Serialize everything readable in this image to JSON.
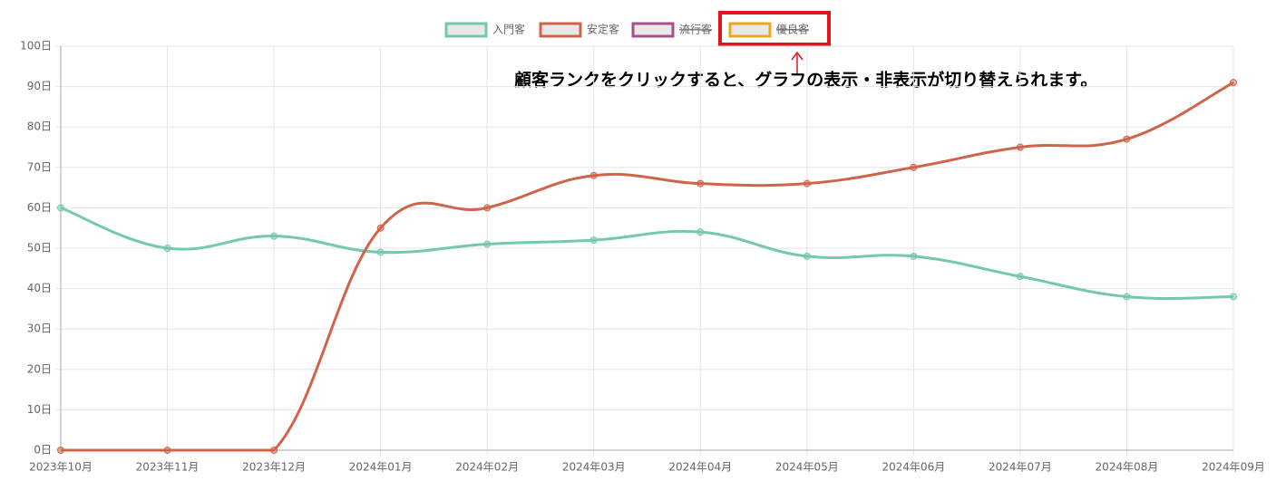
{
  "chart_data": {
    "type": "line",
    "categories": [
      "2023年10月",
      "2023年11月",
      "2023年12月",
      "2024年01月",
      "2024年02月",
      "2024年03月",
      "2024年04月",
      "2024年05月",
      "2024年06月",
      "2024年07月",
      "2024年08月",
      "2024年09月"
    ],
    "series": [
      {
        "name": "入門客",
        "color": "#74c9a9",
        "values": [
          60,
          50,
          53,
          49,
          51,
          52,
          54,
          48,
          48,
          43,
          38,
          38
        ]
      },
      {
        "name": "安定客",
        "color": "#d0644b",
        "values": [
          0,
          0,
          0,
          55,
          60,
          68,
          66,
          66,
          70,
          75,
          77,
          91
        ]
      },
      {
        "name": "流行客",
        "color": "#a8508a",
        "hidden": true
      },
      {
        "name": "優良客",
        "color": "#e8a91f",
        "hidden": true
      }
    ],
    "ylim": [
      0,
      100
    ],
    "yticks": [
      {
        "value": 0,
        "label": "0日"
      },
      {
        "value": 10,
        "label": "10日"
      },
      {
        "value": 20,
        "label": "20日"
      },
      {
        "value": 30,
        "label": "30日"
      },
      {
        "value": 40,
        "label": "40日"
      },
      {
        "value": 50,
        "label": "50日"
      },
      {
        "value": 60,
        "label": "60日"
      },
      {
        "value": 70,
        "label": "70日"
      },
      {
        "value": 80,
        "label": "80日"
      },
      {
        "value": 90,
        "label": "90日"
      },
      {
        "value": 100,
        "label": "100日"
      }
    ],
    "grid": true,
    "legend": "top",
    "annotation": "顧客ランクをクリックすると、グラフの表示・非表示が切り替えられます。"
  }
}
